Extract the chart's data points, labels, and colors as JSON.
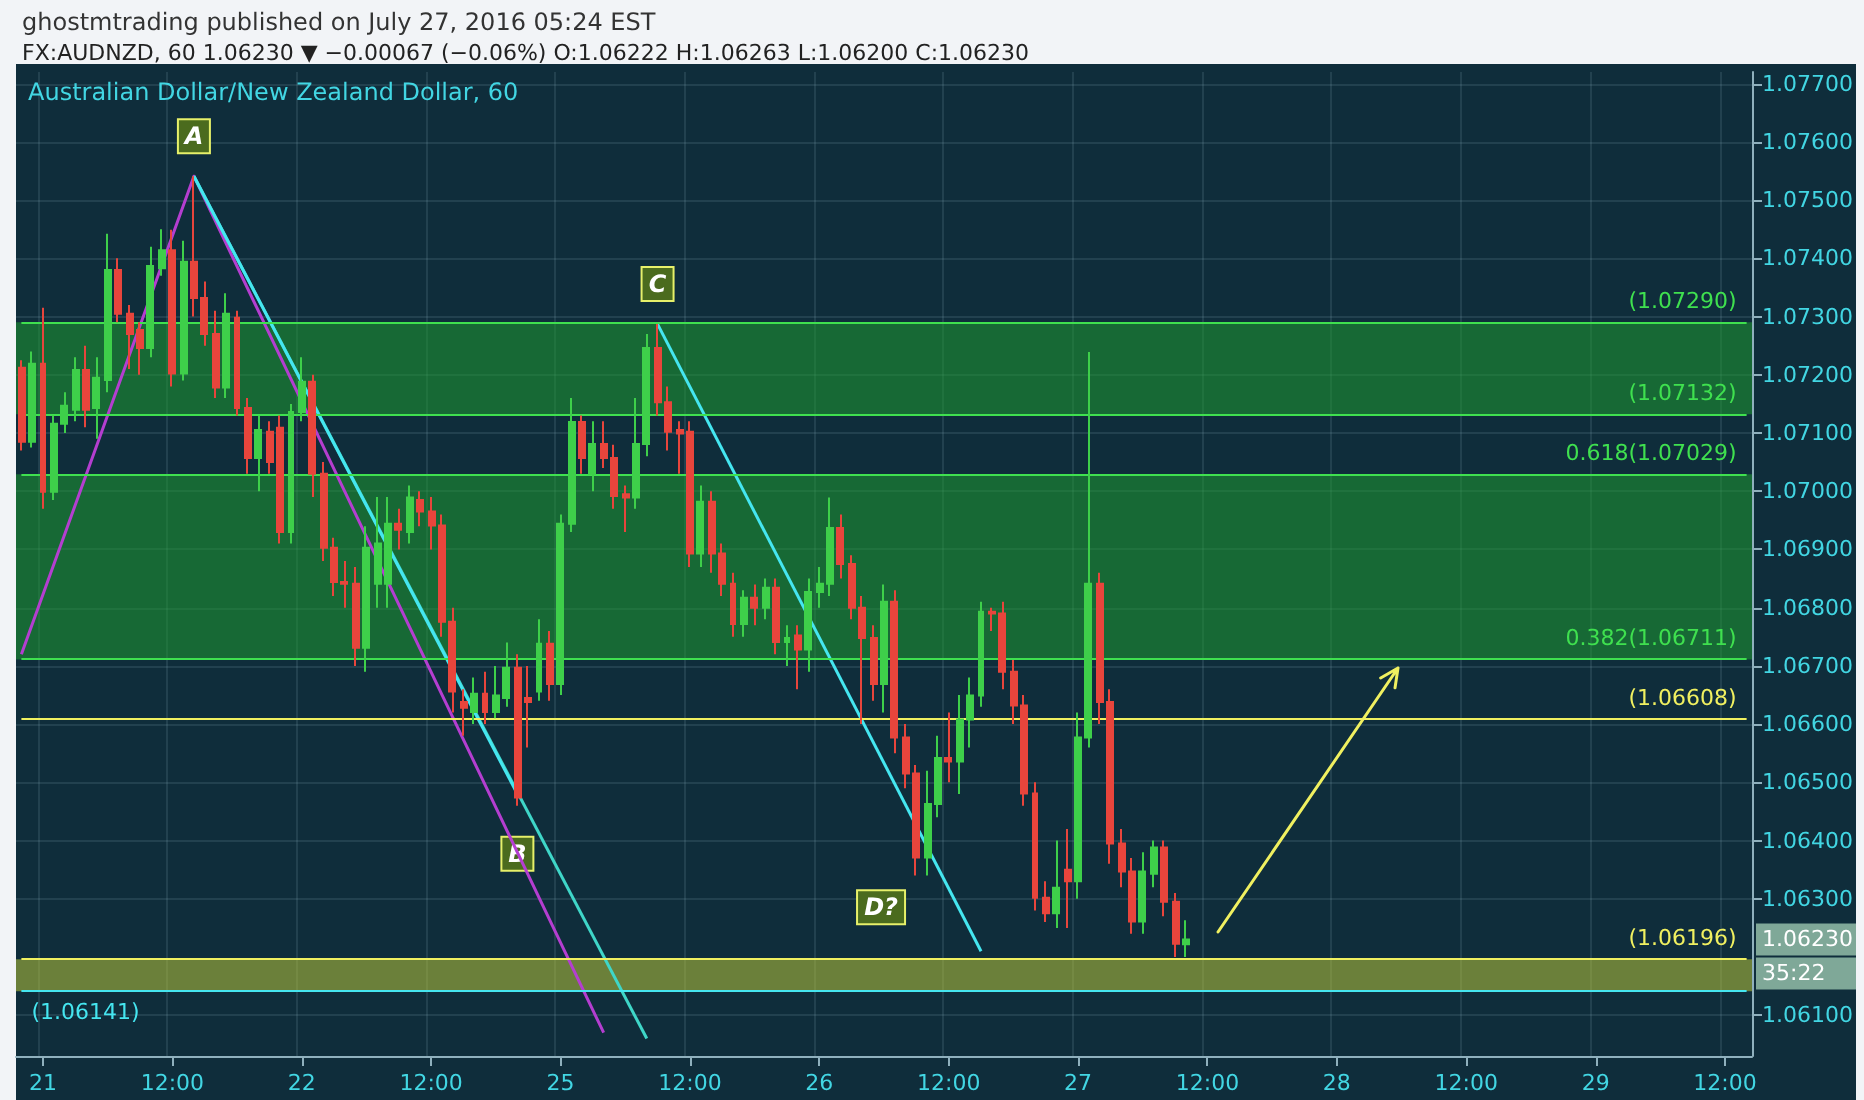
{
  "chart_data": {
    "type": "candlestick",
    "title": "ghostmtrading published on July 27, 2016 05:24 EST",
    "subtitle": "FX:AUDNZD, 60 1.06230 ▼ −0.00067 (−0.06%) O:1.06222 H:1.06263 L:1.06200 C:1.06230",
    "categories": [
      null,
      null,
      "21",
      null,
      null,
      null,
      null,
      null,
      null,
      null,
      null,
      null,
      null,
      null,
      "12:00",
      null,
      null,
      null,
      null,
      null,
      null,
      null,
      null,
      null,
      null,
      null,
      "22",
      null,
      null,
      null,
      null,
      null,
      null,
      null,
      null,
      null,
      null,
      null,
      "12:00",
      null,
      null,
      null,
      null,
      null,
      null,
      null,
      null,
      null,
      null,
      null,
      "25",
      null,
      null,
      null,
      null,
      null,
      null,
      null,
      null,
      null,
      null,
      null,
      "12:00",
      null,
      null,
      null,
      null,
      null,
      null,
      null,
      null,
      null,
      null,
      null,
      "26",
      null,
      null,
      null,
      null,
      null,
      null,
      null,
      null,
      null,
      null,
      null,
      "12:00",
      null,
      null,
      null,
      null,
      null,
      null,
      null,
      null,
      null,
      null,
      null,
      "27",
      null,
      null,
      null,
      null,
      null,
      null,
      null,
      null,
      null,
      null,
      null,
      "12:00",
      null,
      null,
      null,
      null,
      null,
      null,
      null,
      null,
      null,
      null,
      null,
      "28",
      null,
      null,
      null,
      null,
      null,
      null,
      null,
      null,
      null,
      null,
      null,
      "12:00",
      null,
      null,
      null,
      null,
      null,
      null,
      null,
      null,
      null,
      null,
      null,
      "29",
      null,
      null,
      null,
      null,
      null,
      null,
      null,
      null,
      null,
      null,
      null,
      "12:00",
      null,
      null
    ],
    "ohlc": [
      [
        1.07212,
        1.07225,
        1.0707,
        1.07085
      ],
      [
        1.07085,
        1.0724,
        1.07075,
        1.07219
      ],
      [
        1.07219,
        1.07315,
        1.0697,
        1.06999
      ],
      [
        1.06999,
        1.0713,
        1.06985,
        1.07116
      ],
      [
        1.07116,
        1.0717,
        1.071,
        1.07147
      ],
      [
        1.0714,
        1.0723,
        1.0712,
        1.07208
      ],
      [
        1.07208,
        1.0725,
        1.0711,
        1.0714
      ],
      [
        1.07143,
        1.0723,
        1.0709,
        1.07195
      ],
      [
        1.07191,
        1.07442,
        1.0717,
        1.0738
      ],
      [
        1.0738,
        1.074,
        1.0729,
        1.07305
      ],
      [
        1.07305,
        1.0732,
        1.0721,
        1.0727
      ],
      [
        1.07277,
        1.0729,
        1.072,
        1.07246
      ],
      [
        1.07246,
        1.0742,
        1.0723,
        1.07387
      ],
      [
        1.07383,
        1.0745,
        1.0737,
        1.07414
      ],
      [
        1.07414,
        1.07449,
        1.0718,
        1.07202
      ],
      [
        1.07202,
        1.0743,
        1.0719,
        1.07394
      ],
      [
        1.07394,
        1.07541,
        1.073,
        1.07332
      ],
      [
        1.07332,
        1.0736,
        1.0725,
        1.0727
      ],
      [
        1.0727,
        1.0731,
        1.0716,
        1.07178
      ],
      [
        1.07178,
        1.0734,
        1.0716,
        1.07305
      ],
      [
        1.07298,
        1.0731,
        1.0713,
        1.07143
      ],
      [
        1.07143,
        1.0716,
        1.0703,
        1.07057
      ],
      [
        1.07057,
        1.0713,
        1.07,
        1.07105
      ],
      [
        1.07102,
        1.0712,
        1.0703,
        1.0705
      ],
      [
        1.07109,
        1.0713,
        1.0691,
        1.0693
      ],
      [
        1.0693,
        1.0715,
        1.0691,
        1.07136
      ],
      [
        1.07136,
        1.0723,
        1.0712,
        1.07188
      ],
      [
        1.07188,
        1.072,
        1.0699,
        1.0703
      ],
      [
        1.0703,
        1.0705,
        1.0688,
        1.06903
      ],
      [
        1.06903,
        1.0692,
        1.0682,
        1.06844
      ],
      [
        1.06844,
        1.0688,
        1.068,
        1.06841
      ],
      [
        1.06841,
        1.0687,
        1.067,
        1.06731
      ],
      [
        1.06731,
        1.0694,
        1.0669,
        1.06903
      ],
      [
        1.06841,
        1.0699,
        1.068,
        1.0691
      ],
      [
        1.06841,
        1.0699,
        1.068,
        1.06944
      ],
      [
        1.06944,
        1.0697,
        1.069,
        1.06934
      ],
      [
        1.0693,
        1.0701,
        1.0691,
        1.06989
      ],
      [
        1.06985,
        1.07,
        1.0694,
        1.06965
      ],
      [
        1.06965,
        1.0699,
        1.069,
        1.06941
      ],
      [
        1.06941,
        1.0696,
        1.0675,
        1.06776
      ],
      [
        1.06776,
        1.068,
        1.0662,
        1.06656
      ],
      [
        1.06638,
        1.0666,
        1.0658,
        1.06628
      ],
      [
        1.06621,
        1.0668,
        1.066,
        1.06652
      ],
      [
        1.06652,
        1.0669,
        1.066,
        1.06621
      ],
      [
        1.06621,
        1.067,
        1.0661,
        1.06649
      ],
      [
        1.06645,
        1.0674,
        1.0663,
        1.06697
      ],
      [
        1.06697,
        1.0672,
        1.0646,
        1.06474
      ],
      [
        1.06645,
        1.067,
        1.0656,
        1.06638
      ],
      [
        1.06656,
        1.0678,
        1.0664,
        1.06738
      ],
      [
        1.06738,
        1.0676,
        1.0664,
        1.06669
      ],
      [
        1.06669,
        1.0696,
        1.0665,
        1.06944
      ],
      [
        1.06944,
        1.0716,
        1.0693,
        1.07119
      ],
      [
        1.07119,
        1.0713,
        1.0703,
        1.07057
      ],
      [
        1.0703,
        1.0712,
        1.07,
        1.07081
      ],
      [
        1.07081,
        1.0712,
        1.0704,
        1.07057
      ],
      [
        1.07057,
        1.0708,
        1.0697,
        1.06992
      ],
      [
        1.06995,
        1.0701,
        1.0693,
        1.06989
      ],
      [
        1.06989,
        1.0716,
        1.0697,
        1.07081
      ],
      [
        1.07081,
        1.0727,
        1.0706,
        1.07246
      ],
      [
        1.07246,
        1.07287,
        1.0713,
        1.07153
      ],
      [
        1.07153,
        1.0718,
        1.0707,
        1.07102
      ],
      [
        1.07105,
        1.0712,
        1.0703,
        1.07099
      ],
      [
        1.07102,
        1.0712,
        1.0687,
        1.06893
      ],
      [
        1.06893,
        1.0701,
        1.0687,
        1.06982
      ],
      [
        1.06982,
        1.07,
        1.0686,
        1.06893
      ],
      [
        1.06893,
        1.0691,
        1.0682,
        1.06841
      ],
      [
        1.06841,
        1.0686,
        1.0675,
        1.06772
      ],
      [
        1.06772,
        1.0683,
        1.0675,
        1.06817
      ],
      [
        1.06817,
        1.0684,
        1.0677,
        1.068
      ],
      [
        1.068,
        1.0685,
        1.0678,
        1.06834
      ],
      [
        1.06834,
        1.0685,
        1.0672,
        1.06741
      ],
      [
        1.06741,
        1.0677,
        1.067,
        1.06748
      ],
      [
        1.06752,
        1.0677,
        1.0666,
        1.06728
      ],
      [
        1.06728,
        1.0685,
        1.0669,
        1.06827
      ],
      [
        1.06827,
        1.0687,
        1.068,
        1.06841
      ],
      [
        1.06841,
        1.06989,
        1.0682,
        1.06937
      ],
      [
        1.06937,
        1.0696,
        1.0685,
        1.06875
      ],
      [
        1.06875,
        1.0689,
        1.0678,
        1.068
      ],
      [
        1.068,
        1.0682,
        1.066,
        1.06748
      ],
      [
        1.06748,
        1.0677,
        1.0664,
        1.06669
      ],
      [
        1.06669,
        1.0684,
        1.0662,
        1.0681
      ],
      [
        1.0681,
        1.0683,
        1.0655,
        1.06577
      ],
      [
        1.06577,
        1.066,
        1.0649,
        1.06515
      ],
      [
        1.06515,
        1.0653,
        1.0634,
        1.06371
      ],
      [
        1.06371,
        1.0652,
        1.0634,
        1.06463
      ],
      [
        1.06463,
        1.0658,
        1.0644,
        1.06542
      ],
      [
        1.06542,
        1.0662,
        1.065,
        1.06536
      ],
      [
        1.06536,
        1.0665,
        1.0648,
        1.06608
      ],
      [
        1.06608,
        1.0668,
        1.0656,
        1.06649
      ],
      [
        1.06649,
        1.0681,
        1.0663,
        1.06793
      ],
      [
        1.06793,
        1.068,
        1.0676,
        1.0679
      ],
      [
        1.0679,
        1.0681,
        1.0666,
        1.0669
      ],
      [
        1.0669,
        1.0671,
        1.066,
        1.06632
      ],
      [
        1.06632,
        1.0665,
        1.0646,
        1.06481
      ],
      [
        1.06481,
        1.065,
        1.0628,
        1.06302
      ],
      [
        1.06302,
        1.0633,
        1.0626,
        1.06275
      ],
      [
        1.06275,
        1.064,
        1.0625,
        1.06319
      ],
      [
        1.0635,
        1.0642,
        1.0625,
        1.0633
      ],
      [
        1.0633,
        1.0662,
        1.063,
        1.06577
      ],
      [
        1.06577,
        1.07239,
        1.0656,
        1.06841
      ],
      [
        1.06841,
        1.0686,
        1.066,
        1.06638
      ],
      [
        1.06638,
        1.0666,
        1.0636,
        1.06395
      ],
      [
        1.06395,
        1.0642,
        1.0632,
        1.06347
      ],
      [
        1.06347,
        1.0637,
        1.0624,
        1.06261
      ],
      [
        1.06261,
        1.0638,
        1.0624,
        1.06347
      ],
      [
        1.06343,
        1.064,
        1.0632,
        1.06388
      ],
      [
        1.06388,
        1.064,
        1.0627,
        1.06295
      ],
      [
        1.06295,
        1.0631,
        1.062,
        1.06223
      ],
      [
        1.06222,
        1.06263,
        1.062,
        1.0623
      ],
      null,
      null,
      null,
      null,
      null,
      null,
      null,
      null,
      null,
      null,
      null,
      null,
      null,
      null,
      null,
      null,
      null,
      null,
      null,
      null,
      null,
      null,
      null,
      null,
      null,
      null,
      null,
      null,
      null,
      null,
      null,
      null,
      null,
      null,
      null,
      null,
      null,
      null,
      null,
      null,
      null,
      null,
      null,
      null,
      null,
      null,
      null,
      null,
      null,
      null,
      null,
      null
    ],
    "series": [
      {
        "type": "line",
        "color": "#b43ed0",
        "values": [
          1.0672,
          null,
          null,
          null,
          null,
          null,
          null,
          null,
          null,
          null,
          null,
          null,
          null,
          null,
          null,
          null,
          1.07541,
          null,
          null,
          null,
          null,
          null,
          null,
          null,
          null,
          null,
          null,
          null,
          null,
          null,
          null,
          null,
          null,
          null,
          null,
          null,
          null,
          null,
          null,
          null,
          null,
          null,
          null,
          null,
          null,
          null,
          null,
          null,
          null,
          null,
          null,
          null,
          null,
          null,
          1.0607,
          null,
          null,
          null,
          null,
          null,
          null,
          null,
          null,
          null,
          null,
          null,
          null,
          null,
          null,
          null,
          null,
          null,
          null,
          null,
          null,
          null,
          null,
          null,
          null,
          null,
          null,
          null,
          null,
          null,
          null,
          null,
          null,
          null,
          null,
          null,
          null,
          null,
          null,
          null,
          null,
          null,
          null,
          null,
          null,
          null,
          null,
          null,
          null,
          null,
          null,
          null,
          null,
          null,
          null,
          null,
          null,
          null,
          null,
          null,
          null,
          null,
          null,
          null,
          null,
          null,
          null,
          null,
          null,
          null,
          null,
          null,
          null,
          null,
          null,
          null,
          null,
          null,
          null,
          null,
          null,
          null,
          null,
          null,
          null,
          null,
          null,
          null,
          null,
          null,
          null,
          null,
          null,
          null,
          null,
          null,
          null,
          null,
          null,
          null,
          null,
          null,
          null,
          null,
          null,
          null,
          null
        ]
      },
      {
        "type": "line",
        "color": "#3fd6c8",
        "values": [
          null,
          null,
          null,
          null,
          null,
          null,
          null,
          null,
          null,
          null,
          null,
          null,
          null,
          null,
          null,
          null,
          1.07541,
          null,
          null,
          null,
          null,
          null,
          null,
          null,
          null,
          null,
          null,
          null,
          null,
          null,
          null,
          null,
          null,
          null,
          null,
          null,
          null,
          null,
          null,
          null,
          null,
          null,
          null,
          null,
          null,
          null,
          null,
          null,
          null,
          null,
          null,
          null,
          null,
          null,
          null,
          null,
          null,
          null,
          1.0606,
          null,
          null,
          null,
          null,
          null,
          null,
          null,
          null,
          null,
          null,
          null,
          null,
          null,
          null,
          null,
          null,
          null,
          null,
          null,
          null,
          null,
          null,
          null,
          null,
          null,
          null,
          null,
          null,
          null,
          null,
          null,
          null,
          null,
          null,
          null,
          null,
          null,
          null,
          null,
          null,
          null,
          null,
          null,
          null,
          null,
          null,
          null,
          null,
          null,
          null,
          null,
          null,
          null,
          null,
          null,
          null,
          null,
          null,
          null,
          null,
          null,
          null,
          null,
          null,
          null,
          null,
          null,
          null,
          null,
          null,
          null,
          null,
          null,
          null,
          null,
          null,
          null,
          null,
          null,
          null,
          null,
          null,
          null,
          null,
          null,
          null,
          null,
          null,
          null,
          null,
          null,
          null,
          null,
          null,
          null,
          null,
          null,
          null,
          null,
          null,
          null,
          null
        ]
      },
      {
        "type": "line",
        "color": "#45e6f0",
        "values": [
          null,
          null,
          null,
          null,
          null,
          null,
          null,
          null,
          null,
          null,
          null,
          null,
          null,
          null,
          null,
          null,
          1.07541,
          null,
          null,
          null,
          null,
          null,
          null,
          null,
          null,
          null,
          null,
          null,
          null,
          null,
          null,
          null,
          null,
          null,
          null,
          null,
          null,
          null,
          null,
          null,
          null,
          null,
          null,
          null,
          null,
          null,
          1.0648,
          null,
          null,
          null,
          null,
          null,
          null,
          null,
          null,
          null,
          null,
          null,
          null,
          null,
          null,
          null,
          null,
          null,
          null,
          null,
          null,
          null,
          null,
          null,
          null,
          null,
          null,
          null,
          null,
          null,
          null,
          null,
          null,
          null,
          null,
          null,
          null,
          null,
          null,
          null,
          null,
          null,
          null,
          null,
          null,
          null,
          null,
          null,
          null,
          null,
          null,
          null,
          null,
          null,
          null,
          null,
          null,
          null,
          null,
          null,
          null,
          null,
          null,
          null,
          null,
          null,
          null,
          null,
          null,
          null,
          null,
          null,
          null,
          null,
          null,
          null,
          null,
          null,
          null,
          null,
          null,
          null,
          null,
          null,
          null,
          null,
          null,
          null,
          null,
          null,
          null,
          null,
          null,
          null,
          null,
          null,
          null,
          null,
          null,
          null,
          null,
          null,
          null,
          null,
          null,
          null,
          null,
          null,
          null,
          null,
          null,
          null,
          null,
          null,
          null
        ]
      },
      {
        "type": "line",
        "color": "#45e6f0",
        "values": [
          null,
          null,
          null,
          null,
          null,
          null,
          null,
          null,
          null,
          null,
          null,
          null,
          null,
          null,
          null,
          null,
          null,
          null,
          null,
          null,
          null,
          null,
          null,
          null,
          null,
          null,
          null,
          null,
          null,
          null,
          null,
          null,
          null,
          null,
          null,
          null,
          null,
          null,
          null,
          null,
          null,
          null,
          null,
          null,
          null,
          null,
          null,
          null,
          null,
          null,
          null,
          null,
          null,
          null,
          null,
          null,
          null,
          null,
          null,
          1.07287,
          null,
          null,
          null,
          null,
          null,
          null,
          null,
          null,
          null,
          null,
          null,
          null,
          null,
          null,
          null,
          null,
          null,
          null,
          null,
          null,
          null,
          null,
          null,
          null,
          null,
          null,
          null,
          null,
          null,
          1.0621,
          null,
          null,
          null,
          null,
          null,
          null,
          null,
          null,
          null,
          null,
          null,
          null,
          null,
          null,
          null,
          null,
          null,
          null,
          null,
          null,
          null,
          null,
          null,
          null,
          null,
          null,
          null,
          null,
          null,
          null,
          null,
          null,
          null,
          null,
          null,
          null,
          null,
          null,
          null,
          null,
          null,
          null,
          null,
          null,
          null,
          null,
          null,
          null,
          null,
          null,
          null,
          null,
          null,
          null,
          null,
          null,
          null,
          null,
          null,
          null,
          null,
          null,
          null,
          null,
          null,
          null,
          null,
          null,
          null,
          null,
          null
        ]
      }
    ],
    "bands": [
      {
        "axis": "y",
        "from": 1.07132,
        "to": 1.0729,
        "color": "#1f9a32"
      },
      {
        "axis": "y",
        "from": 1.06711,
        "to": 1.07029,
        "color": "#1f9a32"
      },
      {
        "axis": "y",
        "from": 1.06141,
        "to": 1.06196,
        "color": "#b8c43a"
      }
    ],
    "ref_lines": [
      {
        "axis": "y",
        "value": 1.0729,
        "label": "(1.07290)",
        "color": "#3fe04f"
      },
      {
        "axis": "y",
        "value": 1.07132,
        "label": "(1.07132)",
        "color": "#3fe04f"
      },
      {
        "axis": "y",
        "value": 1.07029,
        "label": "0.618(1.07029)",
        "color": "#3fe04f"
      },
      {
        "axis": "y",
        "value": 1.06711,
        "label": "0.382(1.06711)",
        "color": "#3fe04f"
      },
      {
        "axis": "y",
        "value": 1.06608,
        "label": "(1.06608)",
        "color": "#f0f060"
      },
      {
        "axis": "y",
        "value": 1.06196,
        "label": "(1.06196)",
        "color": "#f0f060"
      },
      {
        "axis": "y",
        "value": 1.06141,
        "label": "(1.06141)",
        "color": "#45e6f0"
      }
    ],
    "annotations": [
      "Australian Dollar/New Zealand Dollar, 60",
      {
        "text": "A",
        "y": 1.07541
      },
      {
        "text": "B",
        "y": 1.0646
      },
      {
        "text": "C",
        "y": 1.07287
      },
      {
        "text": "D?",
        "y": 1.0621
      },
      "1.06230",
      "35:22"
    ],
    "ylim": [
      1.0603,
      1.0772
    ],
    "yticks": [
      {
        "value": 1.061,
        "label": "1.06100"
      },
      {
        "value": 1.063,
        "label": "1.06300"
      },
      {
        "value": 1.064,
        "label": "1.06400"
      },
      {
        "value": 1.065,
        "label": "1.06500"
      },
      {
        "value": 1.066,
        "label": "1.06600"
      },
      {
        "value": 1.067,
        "label": "1.06700"
      },
      {
        "value": 1.068,
        "label": "1.06800"
      },
      {
        "value": 1.069,
        "label": "1.06900"
      },
      {
        "value": 1.07,
        "label": "1.07000"
      },
      {
        "value": 1.071,
        "label": "1.07100"
      },
      {
        "value": 1.072,
        "label": "1.07200"
      },
      {
        "value": 1.073,
        "label": "1.07300"
      },
      {
        "value": 1.074,
        "label": "1.07400"
      },
      {
        "value": 1.075,
        "label": "1.07500"
      },
      {
        "value": 1.076,
        "label": "1.07600"
      },
      {
        "value": 1.077,
        "label": "1.07700"
      }
    ],
    "grid": true,
    "marker": "none"
  }
}
